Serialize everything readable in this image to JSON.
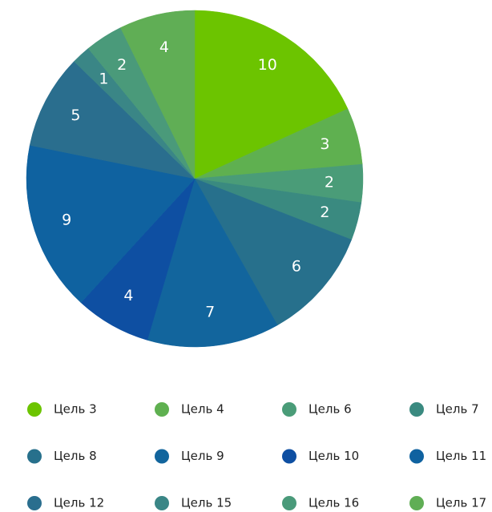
{
  "chart_data": {
    "type": "pie",
    "categories": [
      "Цель 3",
      "Цель 4",
      "Цель 6",
      "Цель 7",
      "Цель 8",
      "Цель 9",
      "Цель 10",
      "Цель 11",
      "Цель 12",
      "Цель 15",
      "Цель 16",
      "Цель 17"
    ],
    "values": [
      10,
      3,
      2,
      2,
      6,
      7,
      4,
      9,
      5,
      1,
      2,
      4
    ],
    "colors": [
      "#6cc400",
      "#5fb050",
      "#4a9c78",
      "#3a8a80",
      "#27708c",
      "#12659d",
      "#0e4fa2",
      "#0f62a0",
      "#2a6e8e",
      "#3a8686",
      "#4a9a7a",
      "#60ae55"
    ],
    "legend": "bottom"
  }
}
